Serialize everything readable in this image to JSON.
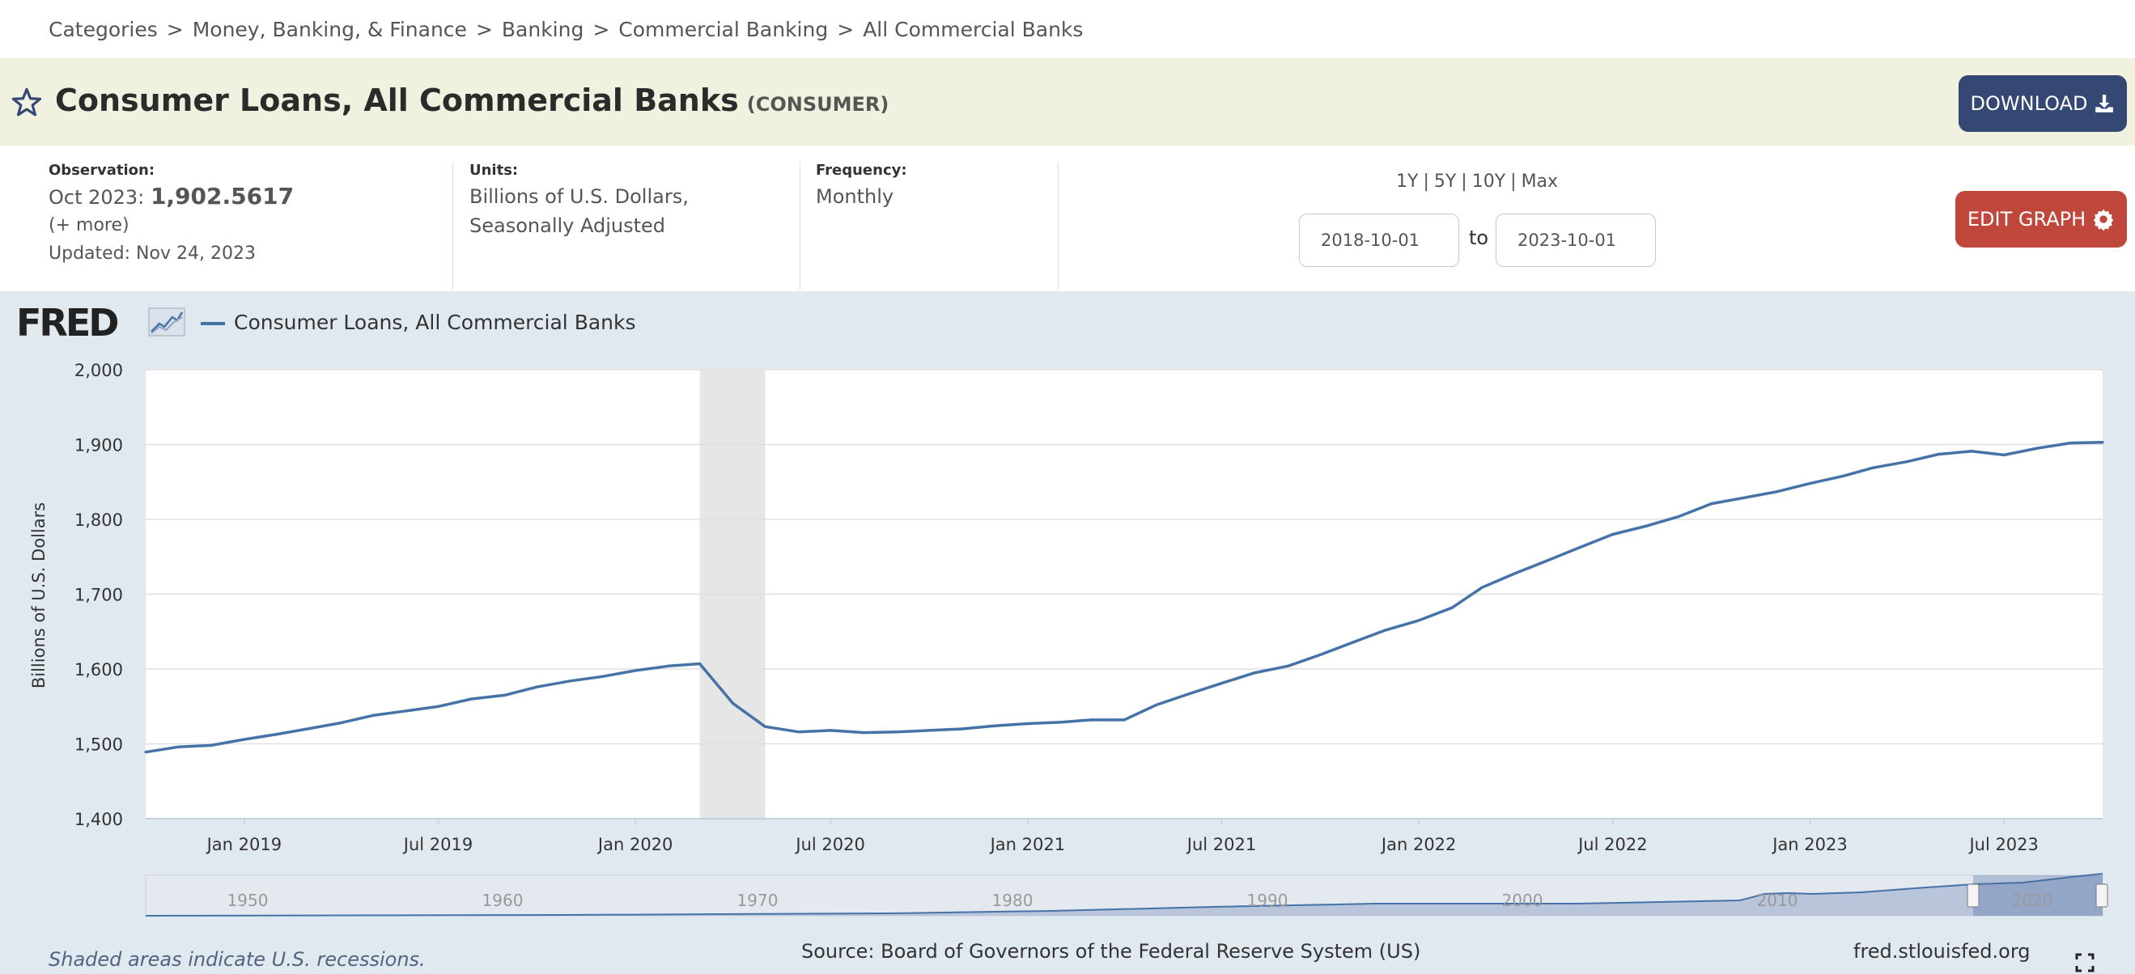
{
  "breadcrumb": [
    "Categories",
    "Money, Banking, & Finance",
    "Banking",
    "Commercial Banking",
    "All Commercial Banks"
  ],
  "breadcrumb_separator": ">",
  "series": {
    "title": "Consumer Loans, All Commercial Banks",
    "id": "(CONSUMER)"
  },
  "buttons": {
    "download": "DOWNLOAD",
    "edit_graph": "EDIT GRAPH"
  },
  "observation": {
    "label": "Observation:",
    "date": "Oct 2023:",
    "value": "1,902.5617",
    "more": "(+ more)",
    "updated": "Updated: Nov 24, 2023"
  },
  "units": {
    "label": "Units:",
    "line1": "Billions of U.S. Dollars,",
    "line2": "Seasonally Adjusted"
  },
  "frequency": {
    "label": "Frequency:",
    "value": "Monthly"
  },
  "ranges": [
    "1Y",
    "5Y",
    "10Y",
    "Max"
  ],
  "date_range": {
    "start": "2018-10-01",
    "to": "to",
    "end": "2023-10-01"
  },
  "notes": {
    "recession": "Shaded areas indicate U.S. recessions.",
    "source": "Source: Board of Governors of the Federal Reserve System (US)",
    "site": "fred.stlouisfed.org"
  },
  "colors": {
    "line": "#4572a7",
    "download_button": "#354773",
    "edit_button": "#c0473b",
    "title_bar": "#f0f1df",
    "graph_bg": "#e1e9f0",
    "recession_shade": "#e6e6e6"
  },
  "chart_data": {
    "type": "line",
    "title": "",
    "logo": "FRED",
    "ylabel": "Billions of U.S. Dollars",
    "ylim": [
      1400,
      2000
    ],
    "yticks": [
      1400,
      1500,
      1600,
      1700,
      1800,
      1900,
      2000
    ],
    "ytick_labels": [
      "1,400",
      "1,500",
      "1,600",
      "1,700",
      "1,800",
      "1,900",
      "2,000"
    ],
    "xlim": [
      "2018-10-01",
      "2023-10-01"
    ],
    "xticks": [
      "2019-01-01",
      "2019-07-01",
      "2020-01-01",
      "2020-07-01",
      "2021-01-01",
      "2021-07-01",
      "2022-01-01",
      "2022-07-01",
      "2023-01-01",
      "2023-07-01"
    ],
    "xtick_labels": [
      "Jan 2019",
      "Jul 2019",
      "Jan 2020",
      "Jul 2020",
      "Jan 2021",
      "Jul 2021",
      "Jan 2022",
      "Jul 2022",
      "Jan 2023",
      "Jul 2023"
    ],
    "grid": true,
    "legend_position": "top-left",
    "recessions": [
      [
        "2020-03-01",
        "2020-05-01"
      ]
    ],
    "series": [
      {
        "name": "Consumer Loans, All Commercial Banks",
        "color": "#4572a7",
        "x": [
          "2018-10-01",
          "2018-11-01",
          "2018-12-01",
          "2019-01-01",
          "2019-02-01",
          "2019-03-01",
          "2019-04-01",
          "2019-05-01",
          "2019-06-01",
          "2019-07-01",
          "2019-08-01",
          "2019-09-01",
          "2019-10-01",
          "2019-11-01",
          "2019-12-01",
          "2020-01-01",
          "2020-02-01",
          "2020-03-01",
          "2020-04-01",
          "2020-05-01",
          "2020-06-01",
          "2020-07-01",
          "2020-08-01",
          "2020-09-01",
          "2020-10-01",
          "2020-11-01",
          "2020-12-01",
          "2021-01-01",
          "2021-02-01",
          "2021-03-01",
          "2021-04-01",
          "2021-05-01",
          "2021-06-01",
          "2021-07-01",
          "2021-08-01",
          "2021-09-01",
          "2021-10-01",
          "2021-11-01",
          "2021-12-01",
          "2022-01-01",
          "2022-02-01",
          "2022-03-01",
          "2022-04-01",
          "2022-05-01",
          "2022-06-01",
          "2022-07-01",
          "2022-08-01",
          "2022-09-01",
          "2022-10-01",
          "2022-11-01",
          "2022-12-01",
          "2023-01-01",
          "2023-02-01",
          "2023-03-01",
          "2023-04-01",
          "2023-05-01",
          "2023-06-01",
          "2023-07-01",
          "2023-08-01",
          "2023-09-01",
          "2023-10-01"
        ],
        "values": [
          1489,
          1496,
          1498,
          1506,
          1513,
          1520,
          1528,
          1538,
          1544,
          1550,
          1560,
          1565,
          1576,
          1584,
          1590,
          1598,
          1604,
          1607,
          1554,
          1523,
          1516,
          1518,
          1515,
          1516,
          1518,
          1520,
          1524,
          1527,
          1529,
          1532,
          1532,
          1552,
          1567,
          1581,
          1595,
          1604,
          1619,
          1636,
          1652,
          1665,
          1682,
          1709,
          1728,
          1745,
          1763,
          1780,
          1791,
          1804,
          1821,
          1829,
          1837,
          1848,
          1858,
          1869,
          1877,
          1887,
          1891,
          1886,
          1895,
          1902,
          1903
        ]
      }
    ],
    "navigator": {
      "labels": [
        "1950",
        "1960",
        "1970",
        "1980",
        "1990",
        "2000",
        "2010",
        "2020"
      ]
    }
  }
}
